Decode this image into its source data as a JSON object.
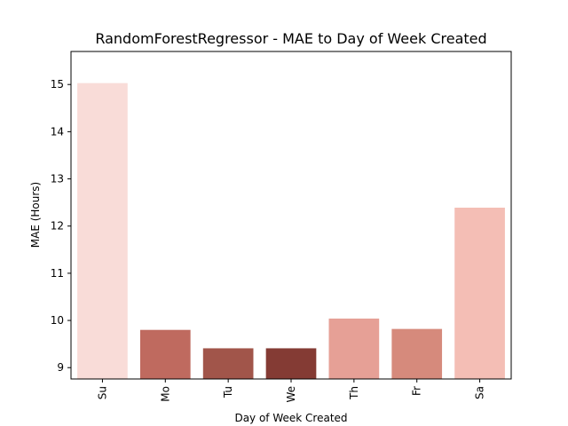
{
  "chart_data": {
    "type": "bar",
    "title": "RandomForestRegressor - MAE to Day of Week Created",
    "xlabel": "Day of Week Created",
    "ylabel": "MAE (Hours)",
    "categories": [
      "Su",
      "Mo",
      "Tu",
      "We",
      "Th",
      "Fr",
      "Sa"
    ],
    "values": [
      15.03,
      9.8,
      9.41,
      9.41,
      10.04,
      9.82,
      12.39
    ],
    "colors": [
      "#f9dcd8",
      "#bf6a5f",
      "#a1554a",
      "#843b34",
      "#e6a096",
      "#d68a7c",
      "#f4beb5"
    ],
    "ylim": [
      8.76,
      15.7
    ],
    "yticks": [
      9,
      10,
      11,
      12,
      13,
      14,
      15
    ],
    "grid": false
  }
}
